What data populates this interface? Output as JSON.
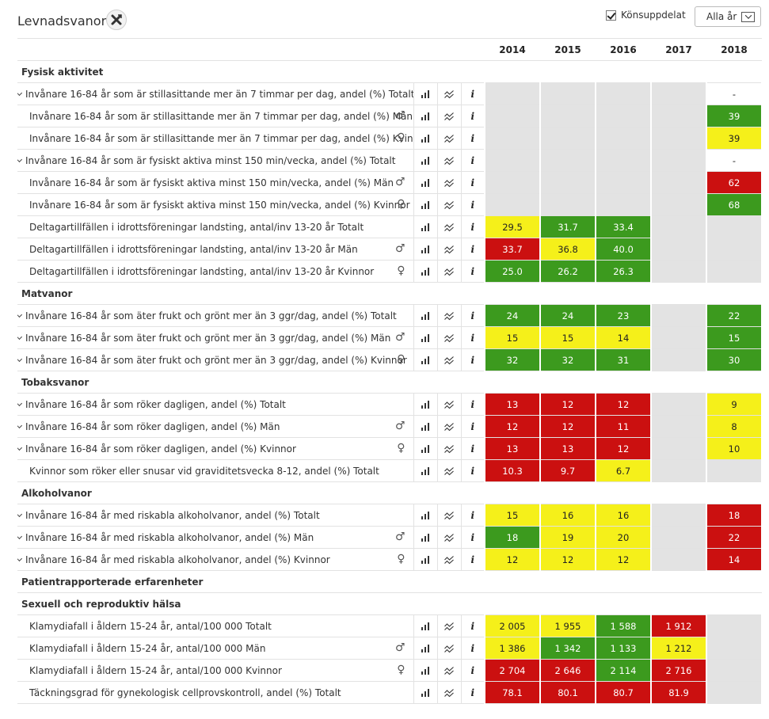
{
  "header": {
    "title": "Levnadsvanor",
    "gender_split_label": "Könsuppdelat",
    "year_select": "Alla år"
  },
  "years": [
    "2014",
    "2015",
    "2016",
    "2017",
    "2018"
  ],
  "colors": {
    "green": "#3c9a1e",
    "yellow": "#f5f01a",
    "red": "#cb1010",
    "empty": "#e3e3e3"
  },
  "rows": [
    {
      "type": "section",
      "label": "Fysisk aktivitet"
    },
    {
      "type": "row",
      "expand": true,
      "label": "Invånare 16-84 år som är stillasittande mer än 7 timmar per dag, andel (%) Totalt",
      "sex": "",
      "cells": [
        [
          "",
          ""
        ],
        [
          "",
          ""
        ],
        [
          "",
          ""
        ],
        [
          "",
          ""
        ],
        [
          "-",
          "nodata"
        ]
      ]
    },
    {
      "type": "row",
      "expand": false,
      "label": "Invånare 16-84 år som är stillasittande mer än 7 timmar per dag, andel (%) Män",
      "sex": "♂",
      "cells": [
        [
          "",
          ""
        ],
        [
          "",
          ""
        ],
        [
          "",
          ""
        ],
        [
          "",
          ""
        ],
        [
          "39",
          "green"
        ]
      ]
    },
    {
      "type": "row",
      "expand": false,
      "label": "Invånare 16-84 år som är stillasittande mer än 7 timmar per dag, andel (%) Kvinnor",
      "sex": "♀",
      "cells": [
        [
          "",
          ""
        ],
        [
          "",
          ""
        ],
        [
          "",
          ""
        ],
        [
          "",
          ""
        ],
        [
          "39",
          "yellow"
        ]
      ]
    },
    {
      "type": "row",
      "expand": true,
      "label": "Invånare 16-84 år som är fysiskt aktiva minst 150 min/vecka, andel (%) Totalt",
      "sex": "",
      "cells": [
        [
          "",
          ""
        ],
        [
          "",
          ""
        ],
        [
          "",
          ""
        ],
        [
          "",
          ""
        ],
        [
          "-",
          "nodata"
        ]
      ]
    },
    {
      "type": "row",
      "expand": false,
      "label": "Invånare 16-84 år som är fysiskt aktiva minst 150 min/vecka, andel (%) Män",
      "sex": "♂",
      "cells": [
        [
          "",
          ""
        ],
        [
          "",
          ""
        ],
        [
          "",
          ""
        ],
        [
          "",
          ""
        ],
        [
          "62",
          "red"
        ]
      ]
    },
    {
      "type": "row",
      "expand": false,
      "label": "Invånare 16-84 år som är fysiskt aktiva minst 150 min/vecka, andel (%) Kvinnor",
      "sex": "♀",
      "cells": [
        [
          "",
          ""
        ],
        [
          "",
          ""
        ],
        [
          "",
          ""
        ],
        [
          "",
          ""
        ],
        [
          "68",
          "green"
        ]
      ]
    },
    {
      "type": "row",
      "expand": false,
      "label": "Deltagartillfällen i idrottsföreningar landsting, antal/inv 13-20 år Totalt",
      "sex": "",
      "cells": [
        [
          "29.5",
          "yellow"
        ],
        [
          "31.7",
          "green"
        ],
        [
          "33.4",
          "green"
        ],
        [
          "",
          ""
        ],
        [
          "",
          ""
        ]
      ]
    },
    {
      "type": "row",
      "expand": false,
      "label": "Deltagartillfällen i idrottsföreningar landsting, antal/inv 13-20 år Män",
      "sex": "♂",
      "cells": [
        [
          "33.7",
          "red"
        ],
        [
          "36.8",
          "yellow"
        ],
        [
          "40.0",
          "green"
        ],
        [
          "",
          ""
        ],
        [
          "",
          ""
        ]
      ]
    },
    {
      "type": "row",
      "expand": false,
      "label": "Deltagartillfällen i idrottsföreningar landsting, antal/inv 13-20 år Kvinnor",
      "sex": "♀",
      "cells": [
        [
          "25.0",
          "green"
        ],
        [
          "26.2",
          "green"
        ],
        [
          "26.3",
          "green"
        ],
        [
          "",
          ""
        ],
        [
          "",
          ""
        ]
      ]
    },
    {
      "type": "section",
      "label": "Matvanor"
    },
    {
      "type": "row",
      "expand": true,
      "label": "Invånare 16-84 år som äter frukt och grönt mer än 3 ggr/dag, andel (%) Totalt",
      "sex": "",
      "cells": [
        [
          "24",
          "green"
        ],
        [
          "24",
          "green"
        ],
        [
          "23",
          "green"
        ],
        [
          "",
          ""
        ],
        [
          "22",
          "green"
        ]
      ]
    },
    {
      "type": "row",
      "expand": true,
      "label": "Invånare 16-84 år som äter frukt och grönt mer än 3 ggr/dag, andel (%) Män",
      "sex": "♂",
      "cells": [
        [
          "15",
          "yellow"
        ],
        [
          "15",
          "yellow"
        ],
        [
          "14",
          "yellow"
        ],
        [
          "",
          ""
        ],
        [
          "15",
          "green"
        ]
      ]
    },
    {
      "type": "row",
      "expand": true,
      "label": "Invånare 16-84 år som äter frukt och grönt mer än 3 ggr/dag, andel (%) Kvinnor",
      "sex": "♀",
      "cells": [
        [
          "32",
          "green"
        ],
        [
          "32",
          "green"
        ],
        [
          "31",
          "green"
        ],
        [
          "",
          ""
        ],
        [
          "30",
          "green"
        ]
      ]
    },
    {
      "type": "section",
      "label": "Tobaksvanor"
    },
    {
      "type": "row",
      "expand": true,
      "label": "Invånare 16-84 år som röker dagligen, andel (%) Totalt",
      "sex": "",
      "cells": [
        [
          "13",
          "red"
        ],
        [
          "12",
          "red"
        ],
        [
          "12",
          "red"
        ],
        [
          "",
          ""
        ],
        [
          "9",
          "yellow"
        ]
      ]
    },
    {
      "type": "row",
      "expand": true,
      "label": "Invånare 16-84 år som röker dagligen, andel (%) Män",
      "sex": "♂",
      "cells": [
        [
          "12",
          "red"
        ],
        [
          "12",
          "red"
        ],
        [
          "11",
          "red"
        ],
        [
          "",
          ""
        ],
        [
          "8",
          "yellow"
        ]
      ]
    },
    {
      "type": "row",
      "expand": true,
      "label": "Invånare 16-84 år som röker dagligen, andel (%) Kvinnor",
      "sex": "♀",
      "cells": [
        [
          "13",
          "red"
        ],
        [
          "13",
          "red"
        ],
        [
          "12",
          "red"
        ],
        [
          "",
          ""
        ],
        [
          "10",
          "yellow"
        ]
      ]
    },
    {
      "type": "row",
      "expand": false,
      "label": "Kvinnor som röker eller snusar vid graviditetsvecka 8-12, andel (%) Totalt",
      "sex": "",
      "cells": [
        [
          "10.3",
          "red"
        ],
        [
          "9.7",
          "red"
        ],
        [
          "6.7",
          "yellow"
        ],
        [
          "",
          ""
        ],
        [
          "",
          ""
        ]
      ]
    },
    {
      "type": "section",
      "label": "Alkoholvanor"
    },
    {
      "type": "row",
      "expand": true,
      "label": "Invånare 16-84 år med riskabla alkoholvanor, andel (%) Totalt",
      "sex": "",
      "cells": [
        [
          "15",
          "yellow"
        ],
        [
          "16",
          "yellow"
        ],
        [
          "16",
          "yellow"
        ],
        [
          "",
          ""
        ],
        [
          "18",
          "red"
        ]
      ]
    },
    {
      "type": "row",
      "expand": true,
      "label": "Invånare 16-84 år med riskabla alkoholvanor, andel (%) Män",
      "sex": "♂",
      "cells": [
        [
          "18",
          "green"
        ],
        [
          "19",
          "yellow"
        ],
        [
          "20",
          "yellow"
        ],
        [
          "",
          ""
        ],
        [
          "22",
          "red"
        ]
      ]
    },
    {
      "type": "row",
      "expand": true,
      "label": "Invånare 16-84 år med riskabla alkoholvanor, andel (%) Kvinnor",
      "sex": "♀",
      "cells": [
        [
          "12",
          "yellow"
        ],
        [
          "12",
          "yellow"
        ],
        [
          "12",
          "yellow"
        ],
        [
          "",
          ""
        ],
        [
          "14",
          "red"
        ]
      ]
    },
    {
      "type": "section",
      "label": "Patientrapporterade erfarenheter"
    },
    {
      "type": "section",
      "label": "Sexuell och reproduktiv hälsa"
    },
    {
      "type": "row",
      "expand": false,
      "label": "Klamydiafall i åldern 15-24 år, antal/100 000 Totalt",
      "sex": "",
      "cells": [
        [
          "2 005",
          "yellow"
        ],
        [
          "1 955",
          "yellow"
        ],
        [
          "1 588",
          "green"
        ],
        [
          "1 912",
          "red"
        ],
        [
          "",
          ""
        ]
      ]
    },
    {
      "type": "row",
      "expand": false,
      "label": "Klamydiafall i åldern 15-24 år, antal/100 000 Män",
      "sex": "♂",
      "cells": [
        [
          "1 386",
          "yellow"
        ],
        [
          "1 342",
          "green"
        ],
        [
          "1 133",
          "green"
        ],
        [
          "1 212",
          "yellow"
        ],
        [
          "",
          ""
        ]
      ]
    },
    {
      "type": "row",
      "expand": false,
      "label": "Klamydiafall i åldern 15-24 år, antal/100 000 Kvinnor",
      "sex": "♀",
      "cells": [
        [
          "2 704",
          "red"
        ],
        [
          "2 646",
          "red"
        ],
        [
          "2 114",
          "green"
        ],
        [
          "2 716",
          "red"
        ],
        [
          "",
          ""
        ]
      ]
    },
    {
      "type": "row",
      "expand": false,
      "label": "Täckningsgrad för gynekologisk cellprovskontroll, andel (%) Totalt",
      "sex": "",
      "cells": [
        [
          "78.1",
          "red"
        ],
        [
          "80.1",
          "red"
        ],
        [
          "80.7",
          "red"
        ],
        [
          "81.9",
          "red"
        ],
        [
          "",
          ""
        ]
      ]
    }
  ]
}
